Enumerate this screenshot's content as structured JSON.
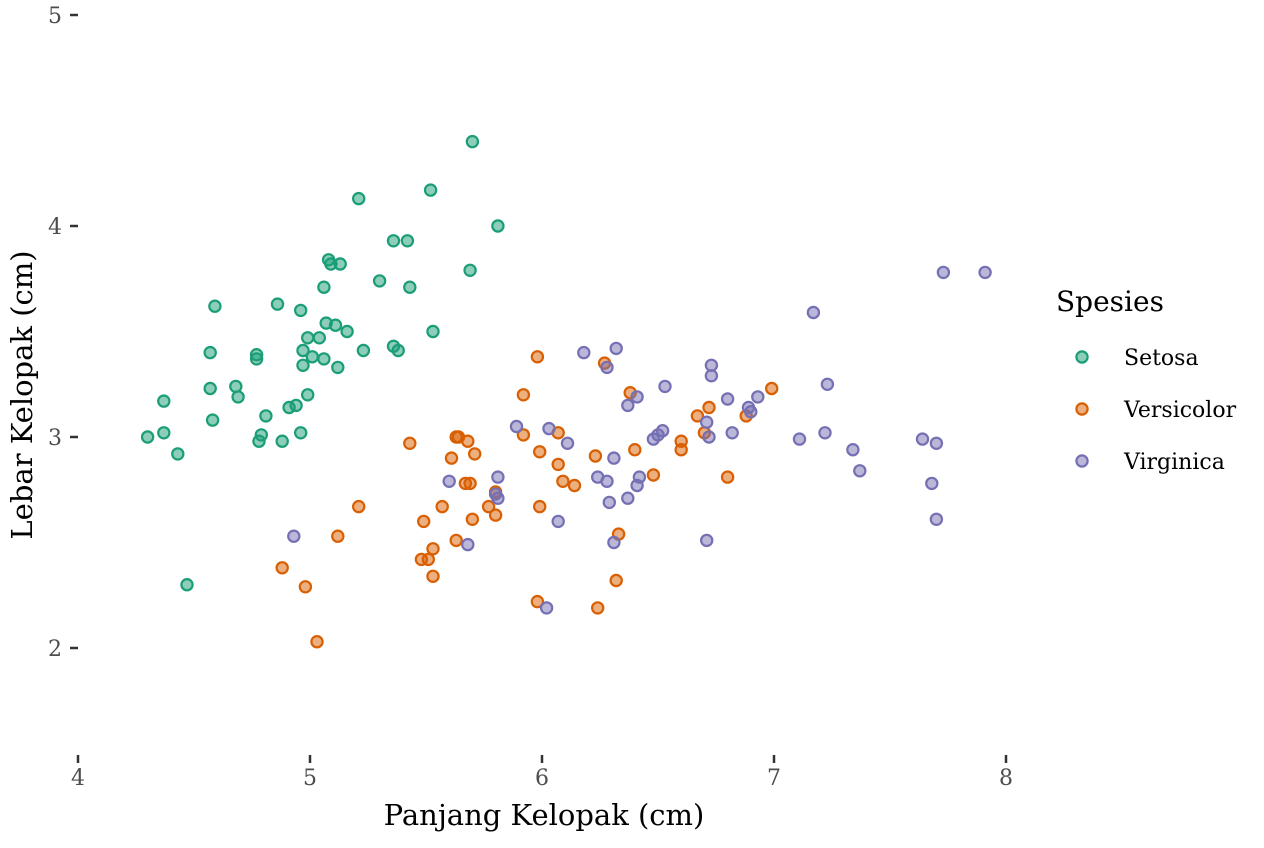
{
  "chart_data": {
    "type": "scatter",
    "xlabel": "Panjang Kelopak (cm)",
    "ylabel": "Lebar Kelopak (cm)",
    "xlim": [
      4,
      8.7
    ],
    "ylim": [
      1.52,
      5.05
    ],
    "xticks": [
      4,
      5,
      6,
      7,
      8
    ],
    "yticks": [
      2,
      3,
      4,
      5
    ],
    "grid": false,
    "legend": {
      "title": "Spesies",
      "placement": "right"
    },
    "series": [
      {
        "name": "Setosa",
        "color": "#1b9e77",
        "points": [
          [
            4.3,
            3.0
          ],
          [
            4.37,
            3.02
          ],
          [
            4.37,
            3.17
          ],
          [
            4.43,
            2.92
          ],
          [
            4.47,
            2.3
          ],
          [
            4.57,
            3.4
          ],
          [
            4.57,
            3.23
          ],
          [
            4.58,
            3.08
          ],
          [
            4.59,
            3.62
          ],
          [
            4.68,
            3.24
          ],
          [
            4.69,
            3.19
          ],
          [
            4.77,
            3.37
          ],
          [
            4.77,
            3.39
          ],
          [
            4.78,
            2.98
          ],
          [
            4.79,
            3.01
          ],
          [
            4.81,
            3.1
          ],
          [
            4.86,
            3.63
          ],
          [
            4.88,
            2.98
          ],
          [
            4.91,
            3.14
          ],
          [
            4.94,
            3.15
          ],
          [
            4.96,
            3.6
          ],
          [
            4.96,
            3.02
          ],
          [
            4.97,
            3.34
          ],
          [
            4.97,
            3.41
          ],
          [
            4.99,
            3.2
          ],
          [
            4.99,
            3.47
          ],
          [
            5.01,
            3.38
          ],
          [
            5.04,
            3.47
          ],
          [
            5.06,
            3.71
          ],
          [
            5.06,
            3.37
          ],
          [
            5.07,
            3.54
          ],
          [
            5.08,
            3.84
          ],
          [
            5.09,
            3.82
          ],
          [
            5.11,
            3.53
          ],
          [
            5.12,
            3.33
          ],
          [
            5.13,
            3.82
          ],
          [
            5.16,
            3.5
          ],
          [
            5.21,
            4.13
          ],
          [
            5.23,
            3.41
          ],
          [
            5.3,
            3.74
          ],
          [
            5.36,
            3.93
          ],
          [
            5.36,
            3.43
          ],
          [
            5.38,
            3.41
          ],
          [
            5.42,
            3.93
          ],
          [
            5.43,
            3.71
          ],
          [
            5.52,
            4.17
          ],
          [
            5.53,
            3.5
          ],
          [
            5.69,
            3.79
          ],
          [
            5.7,
            4.4
          ],
          [
            5.81,
            4.0
          ]
        ]
      },
      {
        "name": "Versicolor",
        "color": "#d95f02",
        "points": [
          [
            4.88,
            2.38
          ],
          [
            4.98,
            2.29
          ],
          [
            5.03,
            2.03
          ],
          [
            5.12,
            2.53
          ],
          [
            5.21,
            2.67
          ],
          [
            5.43,
            2.97
          ],
          [
            5.48,
            2.42
          ],
          [
            5.49,
            2.6
          ],
          [
            5.51,
            2.42
          ],
          [
            5.53,
            2.34
          ],
          [
            5.53,
            2.47
          ],
          [
            5.57,
            2.67
          ],
          [
            5.61,
            2.9
          ],
          [
            5.63,
            3.0
          ],
          [
            5.63,
            2.51
          ],
          [
            5.64,
            3.0
          ],
          [
            5.67,
            2.78
          ],
          [
            5.68,
            2.98
          ],
          [
            5.69,
            2.78
          ],
          [
            5.7,
            2.61
          ],
          [
            5.71,
            2.92
          ],
          [
            5.77,
            2.67
          ],
          [
            5.8,
            2.74
          ],
          [
            5.8,
            2.63
          ],
          [
            5.92,
            3.2
          ],
          [
            5.92,
            3.01
          ],
          [
            5.98,
            3.38
          ],
          [
            5.98,
            2.22
          ],
          [
            5.99,
            2.93
          ],
          [
            5.99,
            2.67
          ],
          [
            6.07,
            3.02
          ],
          [
            6.07,
            2.87
          ],
          [
            6.09,
            2.79
          ],
          [
            6.14,
            2.77
          ],
          [
            6.23,
            2.91
          ],
          [
            6.24,
            2.19
          ],
          [
            6.27,
            3.35
          ],
          [
            6.32,
            2.32
          ],
          [
            6.33,
            2.54
          ],
          [
            6.38,
            3.21
          ],
          [
            6.4,
            2.94
          ],
          [
            6.48,
            2.82
          ],
          [
            6.6,
            2.94
          ],
          [
            6.6,
            2.98
          ],
          [
            6.67,
            3.1
          ],
          [
            6.7,
            3.02
          ],
          [
            6.72,
            3.14
          ],
          [
            6.8,
            2.81
          ],
          [
            6.88,
            3.1
          ],
          [
            6.99,
            3.23
          ]
        ]
      },
      {
        "name": "Virginica",
        "color": "#7570b3",
        "points": [
          [
            4.93,
            2.53
          ],
          [
            5.6,
            2.79
          ],
          [
            5.68,
            2.49
          ],
          [
            5.8,
            2.73
          ],
          [
            5.81,
            2.81
          ],
          [
            5.81,
            2.71
          ],
          [
            5.89,
            3.05
          ],
          [
            6.02,
            2.19
          ],
          [
            6.03,
            3.04
          ],
          [
            6.07,
            2.6
          ],
          [
            6.11,
            2.97
          ],
          [
            6.18,
            3.4
          ],
          [
            6.24,
            2.81
          ],
          [
            6.28,
            3.33
          ],
          [
            6.28,
            2.79
          ],
          [
            6.29,
            2.69
          ],
          [
            6.31,
            2.9
          ],
          [
            6.31,
            2.5
          ],
          [
            6.32,
            3.42
          ],
          [
            6.37,
            3.15
          ],
          [
            6.37,
            2.71
          ],
          [
            6.41,
            3.19
          ],
          [
            6.41,
            2.77
          ],
          [
            6.42,
            2.81
          ],
          [
            6.48,
            2.99
          ],
          [
            6.5,
            3.01
          ],
          [
            6.52,
            3.03
          ],
          [
            6.53,
            3.24
          ],
          [
            6.71,
            3.07
          ],
          [
            6.71,
            2.51
          ],
          [
            6.72,
            3.0
          ],
          [
            6.73,
            3.34
          ],
          [
            6.73,
            3.29
          ],
          [
            6.8,
            3.18
          ],
          [
            6.82,
            3.02
          ],
          [
            6.89,
            3.14
          ],
          [
            6.9,
            3.12
          ],
          [
            6.93,
            3.19
          ],
          [
            7.11,
            2.99
          ],
          [
            7.17,
            3.59
          ],
          [
            7.22,
            3.02
          ],
          [
            7.23,
            3.25
          ],
          [
            7.34,
            2.94
          ],
          [
            7.37,
            2.84
          ],
          [
            7.64,
            2.99
          ],
          [
            7.68,
            2.78
          ],
          [
            7.7,
            2.97
          ],
          [
            7.7,
            2.61
          ],
          [
            7.73,
            3.78
          ],
          [
            7.91,
            3.78
          ]
        ]
      }
    ]
  }
}
